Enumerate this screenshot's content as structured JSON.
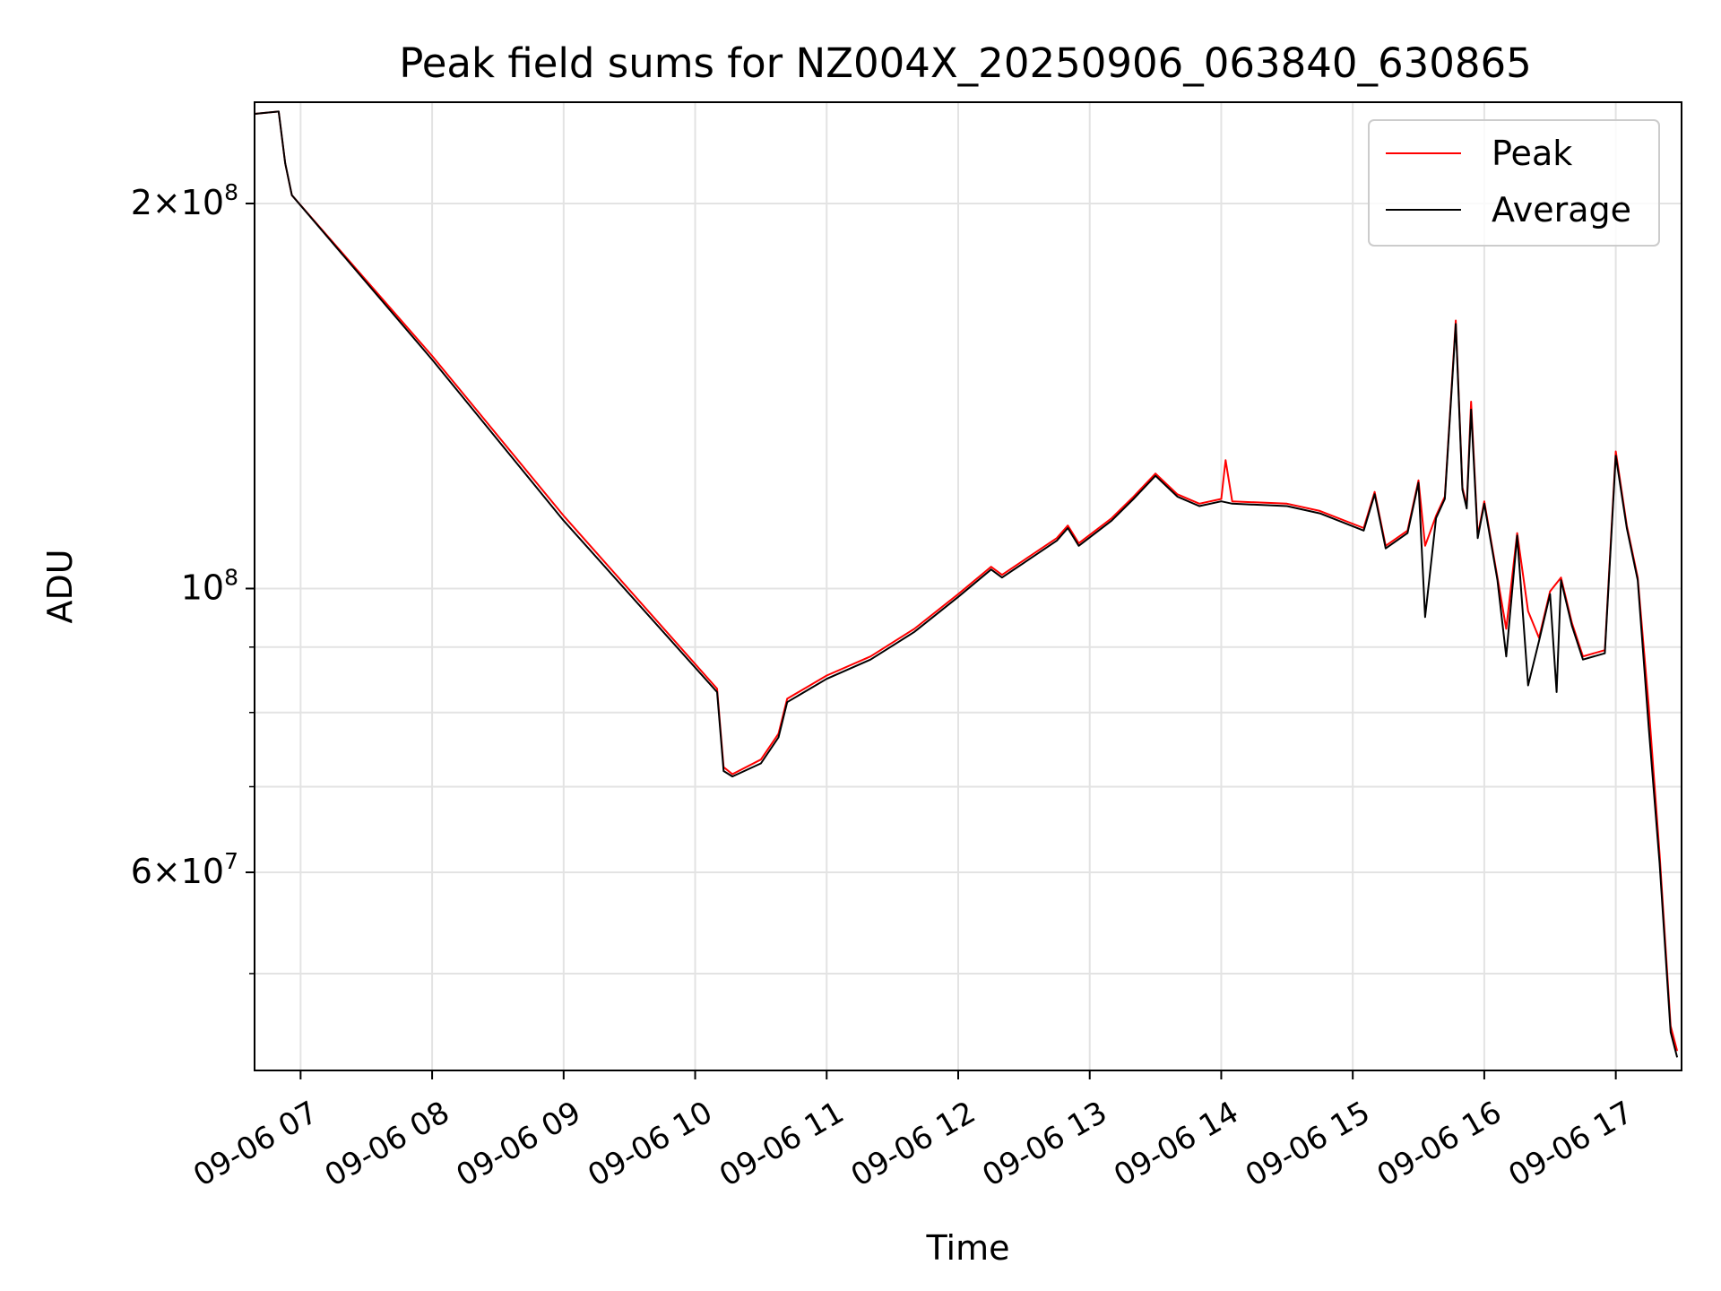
{
  "chart_data": {
    "type": "line",
    "title": "Peak field sums for NZ004X_20250906_063840_630865",
    "xlabel": "Time",
    "ylabel": "ADU",
    "y_scale": "log",
    "xlim": [
      "09-06 06:39",
      "09-06 17:30"
    ],
    "ylim": [
      42000000,
      240000000
    ],
    "x_tick_labels": [
      "09-06 07",
      "09-06 08",
      "09-06 09",
      "09-06 10",
      "09-06 11",
      "09-06 12",
      "09-06 13",
      "09-06 14",
      "09-06 15",
      "09-06 16",
      "09-06 17"
    ],
    "y_tick_labels": [
      {
        "base": "2×10",
        "exp": "8",
        "value": 200000000
      },
      {
        "base": "10",
        "exp": "8",
        "value": 100000000
      },
      {
        "base": "6×10",
        "exp": "7",
        "value": 60000000
      }
    ],
    "y_minor_ticks": [
      40000000,
      50000000,
      70000000,
      80000000,
      90000000
    ],
    "grid": true,
    "legend_position": "top-right",
    "colors": {
      "peak": "#ff0000",
      "average": "#000000",
      "grid": "#e3e3e3"
    },
    "series": [
      {
        "name": "Peak",
        "color": "#ff0000",
        "points": [
          [
            "09-06 06:39",
            235000000
          ],
          [
            "09-06 06:50",
            236000000
          ],
          [
            "09-06 06:53",
            215000000
          ],
          [
            "09-06 06:56",
            203000000
          ],
          [
            "09-06 08:00",
            152000000
          ],
          [
            "09-06 09:00",
            114000000
          ],
          [
            "09-06 10:10",
            83500000
          ],
          [
            "09-06 10:13",
            72500000
          ],
          [
            "09-06 10:17",
            71600000
          ],
          [
            "09-06 10:30",
            73500000
          ],
          [
            "09-06 10:38",
            77000000
          ],
          [
            "09-06 10:42",
            82000000
          ],
          [
            "09-06 11:00",
            85500000
          ],
          [
            "09-06 11:20",
            88500000
          ],
          [
            "09-06 11:40",
            93000000
          ],
          [
            "09-06 12:00",
            99000000
          ],
          [
            "09-06 12:15",
            104000000
          ],
          [
            "09-06 12:20",
            102500000
          ],
          [
            "09-06 12:45",
            109500000
          ],
          [
            "09-06 12:50",
            112000000
          ],
          [
            "09-06 12:55",
            108500000
          ],
          [
            "09-06 13:10",
            113500000
          ],
          [
            "09-06 13:20",
            118000000
          ],
          [
            "09-06 13:30",
            123000000
          ],
          [
            "09-06 13:40",
            118500000
          ],
          [
            "09-06 13:50",
            116500000
          ],
          [
            "09-06 14:00",
            117500000
          ],
          [
            "09-06 14:02",
            126000000
          ],
          [
            "09-06 14:05",
            117000000
          ],
          [
            "09-06 14:30",
            116500000
          ],
          [
            "09-06 14:45",
            115000000
          ],
          [
            "09-06 15:05",
            111500000
          ],
          [
            "09-06 15:10",
            119000000
          ],
          [
            "09-06 15:15",
            108000000
          ],
          [
            "09-06 15:25",
            111000000
          ],
          [
            "09-06 15:30",
            121500000
          ],
          [
            "09-06 15:33",
            108000000
          ],
          [
            "09-06 15:38",
            114000000
          ],
          [
            "09-06 15:42",
            118000000
          ],
          [
            "09-06 15:47",
            162000000
          ],
          [
            "09-06 15:50",
            120000000
          ],
          [
            "09-06 15:52",
            116000000
          ],
          [
            "09-06 15:54",
            140000000
          ],
          [
            "09-06 15:57",
            110000000
          ],
          [
            "09-06 16:00",
            117000000
          ],
          [
            "09-06 16:06",
            102000000
          ],
          [
            "09-06 16:10",
            93000000
          ],
          [
            "09-06 16:15",
            110500000
          ],
          [
            "09-06 16:20",
            96000000
          ],
          [
            "09-06 16:25",
            91500000
          ],
          [
            "09-06 16:30",
            99500000
          ],
          [
            "09-06 16:35",
            102000000
          ],
          [
            "09-06 16:40",
            94000000
          ],
          [
            "09-06 16:45",
            88500000
          ],
          [
            "09-06 16:55",
            89500000
          ],
          [
            "09-06 17:00",
            128000000
          ],
          [
            "09-06 17:05",
            112000000
          ],
          [
            "09-06 17:10",
            102000000
          ],
          [
            "09-06 17:15",
            81000000
          ],
          [
            "09-06 17:20",
            62000000
          ],
          [
            "09-06 17:25",
            45500000
          ],
          [
            "09-06 17:28",
            43500000
          ]
        ]
      },
      {
        "name": "Average",
        "color": "#000000",
        "points": [
          [
            "09-06 06:39",
            235000000
          ],
          [
            "09-06 06:50",
            236000000
          ],
          [
            "09-06 06:53",
            215000000
          ],
          [
            "09-06 06:56",
            203000000
          ],
          [
            "09-06 08:00",
            151000000
          ],
          [
            "09-06 09:00",
            113000000
          ],
          [
            "09-06 10:10",
            83000000
          ],
          [
            "09-06 10:13",
            72000000
          ],
          [
            "09-06 10:17",
            71300000
          ],
          [
            "09-06 10:30",
            73000000
          ],
          [
            "09-06 10:38",
            76500000
          ],
          [
            "09-06 10:42",
            81500000
          ],
          [
            "09-06 11:00",
            85000000
          ],
          [
            "09-06 11:20",
            88000000
          ],
          [
            "09-06 11:40",
            92500000
          ],
          [
            "09-06 12:00",
            98500000
          ],
          [
            "09-06 12:15",
            103500000
          ],
          [
            "09-06 12:20",
            102000000
          ],
          [
            "09-06 12:45",
            109000000
          ],
          [
            "09-06 12:50",
            111500000
          ],
          [
            "09-06 12:55",
            108000000
          ],
          [
            "09-06 13:10",
            113000000
          ],
          [
            "09-06 13:20",
            117500000
          ],
          [
            "09-06 13:30",
            122500000
          ],
          [
            "09-06 13:40",
            118000000
          ],
          [
            "09-06 13:50",
            116000000
          ],
          [
            "09-06 14:00",
            117000000
          ],
          [
            "09-06 14:05",
            116500000
          ],
          [
            "09-06 14:30",
            116000000
          ],
          [
            "09-06 14:45",
            114500000
          ],
          [
            "09-06 15:05",
            111000000
          ],
          [
            "09-06 15:10",
            118500000
          ],
          [
            "09-06 15:15",
            107500000
          ],
          [
            "09-06 15:25",
            110500000
          ],
          [
            "09-06 15:30",
            121000000
          ],
          [
            "09-06 15:33",
            95000000
          ],
          [
            "09-06 15:38",
            113500000
          ],
          [
            "09-06 15:42",
            117500000
          ],
          [
            "09-06 15:47",
            161000000
          ],
          [
            "09-06 15:50",
            119500000
          ],
          [
            "09-06 15:52",
            115500000
          ],
          [
            "09-06 15:54",
            138000000
          ],
          [
            "09-06 15:57",
            109500000
          ],
          [
            "09-06 16:00",
            116500000
          ],
          [
            "09-06 16:06",
            101500000
          ],
          [
            "09-06 16:10",
            88500000
          ],
          [
            "09-06 16:15",
            110000000
          ],
          [
            "09-06 16:20",
            84000000
          ],
          [
            "09-06 16:25",
            91000000
          ],
          [
            "09-06 16:30",
            99000000
          ],
          [
            "09-06 16:33",
            83000000
          ],
          [
            "09-06 16:35",
            101500000
          ],
          [
            "09-06 16:40",
            93500000
          ],
          [
            "09-06 16:45",
            88000000
          ],
          [
            "09-06 16:55",
            89000000
          ],
          [
            "09-06 17:00",
            127000000
          ],
          [
            "09-06 17:05",
            111500000
          ],
          [
            "09-06 17:10",
            101500000
          ],
          [
            "09-06 17:15",
            78000000
          ],
          [
            "09-06 17:20",
            61000000
          ],
          [
            "09-06 17:25",
            45000000
          ],
          [
            "09-06 17:28",
            43000000
          ]
        ]
      }
    ]
  }
}
